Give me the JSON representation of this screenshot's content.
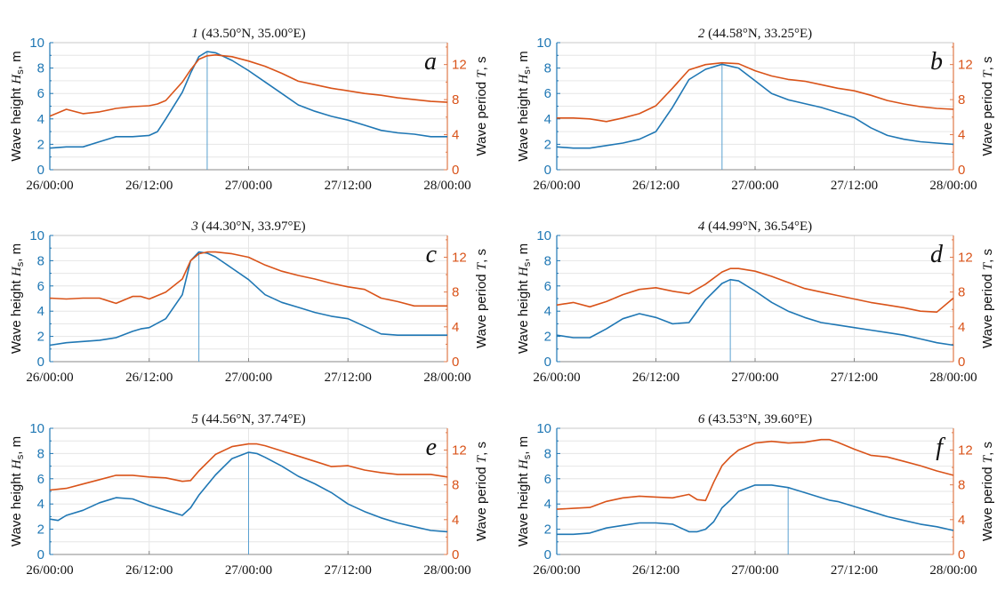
{
  "colors": {
    "wave_height": "#1f77b4",
    "wave_period": "#d95319",
    "grid": "#e6e6e6",
    "marker_line": "#5aa0d0",
    "axis_left": "#1f77b4",
    "axis_right": "#e07a4a"
  },
  "chart_data": [
    {
      "type": "line",
      "panel_letter": "a",
      "title_num": "1",
      "title_coords": "(43.50°N, 35.00°E)",
      "xlabel": "",
      "ylabel": "Wave height H_s, m",
      "ylabel_right": "Wave period T, s",
      "x_unit": "hours since 26/00:00",
      "xlim": [
        0,
        48
      ],
      "ylim": [
        0,
        10
      ],
      "ylim_right": [
        0,
        14.5
      ],
      "x_ticks": [
        0,
        12,
        24,
        36,
        48
      ],
      "x_tick_labels": [
        "26/00:00",
        "26/12:00",
        "27/00:00",
        "27/12:00",
        "28/00:00"
      ],
      "y_ticks": [
        0,
        2,
        4,
        6,
        8,
        10
      ],
      "y_ticks_right": [
        0,
        4,
        8,
        12
      ],
      "grid": true,
      "peak_marker_x": 19,
      "x": [
        0,
        2,
        4,
        6,
        8,
        10,
        12,
        13,
        14,
        16,
        17,
        18,
        19,
        20,
        22,
        24,
        26,
        28,
        30,
        32,
        34,
        36,
        38,
        40,
        42,
        44,
        46,
        48
      ],
      "series": [
        {
          "name": "Wave height Hs",
          "axis": "left",
          "values": [
            1.7,
            1.8,
            1.8,
            2.2,
            2.6,
            2.6,
            2.7,
            3.0,
            4.0,
            6.1,
            7.6,
            8.9,
            9.3,
            9.2,
            8.6,
            7.8,
            6.9,
            6.0,
            5.1,
            4.6,
            4.2,
            3.9,
            3.5,
            3.1,
            2.9,
            2.8,
            2.6,
            2.6
          ]
        },
        {
          "name": "Wave period T",
          "axis": "right",
          "values": [
            6.1,
            6.9,
            6.4,
            6.6,
            7.0,
            7.2,
            7.3,
            7.5,
            7.9,
            10.0,
            11.4,
            12.6,
            13.0,
            13.1,
            12.9,
            12.4,
            11.8,
            11.0,
            10.1,
            9.7,
            9.3,
            9.0,
            8.7,
            8.5,
            8.2,
            8.0,
            7.8,
            7.7
          ]
        }
      ]
    },
    {
      "type": "line",
      "panel_letter": "b",
      "title_num": "2",
      "title_coords": "(44.58°N, 33.25°E)",
      "xlabel": "",
      "ylabel": "Wave height H_s, m",
      "ylabel_right": "Wave period T, s",
      "x_unit": "hours since 26/00:00",
      "xlim": [
        0,
        48
      ],
      "ylim": [
        0,
        10
      ],
      "ylim_right": [
        0,
        14.5
      ],
      "x_ticks": [
        0,
        12,
        24,
        36,
        48
      ],
      "x_tick_labels": [
        "26/00:00",
        "26/12:00",
        "27/00:00",
        "27/12:00",
        "28/00:00"
      ],
      "y_ticks": [
        0,
        2,
        4,
        6,
        8,
        10
      ],
      "y_ticks_right": [
        0,
        4,
        8,
        12
      ],
      "grid": true,
      "peak_marker_x": 20,
      "x": [
        0,
        2,
        4,
        6,
        8,
        10,
        12,
        14,
        16,
        18,
        20,
        22,
        24,
        26,
        28,
        30,
        32,
        34,
        36,
        38,
        40,
        42,
        44,
        46,
        48
      ],
      "series": [
        {
          "name": "Wave height Hs",
          "axis": "left",
          "values": [
            1.8,
            1.7,
            1.7,
            1.9,
            2.1,
            2.4,
            3.0,
            4.9,
            7.1,
            7.9,
            8.3,
            8.0,
            7.0,
            6.0,
            5.5,
            5.2,
            4.9,
            4.5,
            4.1,
            3.3,
            2.7,
            2.4,
            2.2,
            2.1,
            2.0
          ]
        },
        {
          "name": "Wave period T",
          "axis": "right",
          "values": [
            5.9,
            5.9,
            5.8,
            5.5,
            5.9,
            6.4,
            7.3,
            9.3,
            11.4,
            12.0,
            12.2,
            12.1,
            11.3,
            10.7,
            10.3,
            10.1,
            9.7,
            9.3,
            9.0,
            8.5,
            7.9,
            7.5,
            7.2,
            7.0,
            6.9
          ]
        }
      ]
    },
    {
      "type": "line",
      "panel_letter": "c",
      "title_num": "3",
      "title_coords": "(44.30°N, 33.97°E)",
      "xlabel": "",
      "ylabel": "Wave height H_s, m",
      "ylabel_right": "Wave period T, s",
      "x_unit": "hours since 26/00:00",
      "xlim": [
        0,
        48
      ],
      "ylim": [
        0,
        10
      ],
      "ylim_right": [
        0,
        14.5
      ],
      "x_ticks": [
        0,
        12,
        24,
        36,
        48
      ],
      "x_tick_labels": [
        "26/00:00",
        "26/12:00",
        "27/00:00",
        "27/12:00",
        "28/00:00"
      ],
      "y_ticks": [
        0,
        2,
        4,
        6,
        8,
        10
      ],
      "y_ticks_right": [
        0,
        4,
        8,
        12
      ],
      "grid": true,
      "peak_marker_x": 18,
      "x": [
        0,
        2,
        4,
        6,
        8,
        10,
        11,
        12,
        14,
        16,
        17,
        18,
        19,
        20,
        22,
        24,
        26,
        28,
        30,
        32,
        34,
        36,
        38,
        40,
        42,
        44,
        46,
        48
      ],
      "series": [
        {
          "name": "Wave height Hs",
          "axis": "left",
          "values": [
            1.3,
            1.5,
            1.6,
            1.7,
            1.9,
            2.4,
            2.6,
            2.7,
            3.4,
            5.3,
            8.0,
            8.7,
            8.6,
            8.3,
            7.4,
            6.5,
            5.3,
            4.7,
            4.3,
            3.9,
            3.6,
            3.4,
            2.8,
            2.2,
            2.1,
            2.1,
            2.1,
            2.1
          ]
        },
        {
          "name": "Wave period T",
          "axis": "right",
          "values": [
            7.3,
            7.2,
            7.3,
            7.3,
            6.7,
            7.5,
            7.5,
            7.2,
            8.0,
            9.5,
            11.6,
            12.4,
            12.6,
            12.6,
            12.4,
            12.0,
            11.1,
            10.4,
            9.9,
            9.5,
            9.0,
            8.6,
            8.3,
            7.3,
            6.9,
            6.4,
            6.4,
            6.4
          ]
        }
      ]
    },
    {
      "type": "line",
      "panel_letter": "d",
      "title_num": "4",
      "title_coords": "(44.99°N, 36.54°E)",
      "xlabel": "",
      "ylabel": "Wave height H_s, m",
      "ylabel_right": "Wave period T, s",
      "x_unit": "hours since 26/00:00",
      "xlim": [
        0,
        48
      ],
      "ylim": [
        0,
        10
      ],
      "ylim_right": [
        0,
        14.5
      ],
      "x_ticks": [
        0,
        12,
        24,
        36,
        48
      ],
      "x_tick_labels": [
        "26/00:00",
        "26/12:00",
        "27/00:00",
        "27/12:00",
        "28/00:00"
      ],
      "y_ticks": [
        0,
        2,
        4,
        6,
        8,
        10
      ],
      "y_ticks_right": [
        0,
        4,
        8,
        12
      ],
      "grid": true,
      "peak_marker_x": 21,
      "x": [
        0,
        2,
        4,
        6,
        8,
        10,
        12,
        14,
        16,
        18,
        20,
        21,
        22,
        24,
        26,
        28,
        30,
        32,
        34,
        36,
        38,
        40,
        42,
        44,
        46,
        48
      ],
      "series": [
        {
          "name": "Wave height Hs",
          "axis": "left",
          "values": [
            2.1,
            1.9,
            1.9,
            2.6,
            3.4,
            3.8,
            3.5,
            3.0,
            3.1,
            4.9,
            6.2,
            6.5,
            6.4,
            5.6,
            4.7,
            4.0,
            3.5,
            3.1,
            2.9,
            2.7,
            2.5,
            2.3,
            2.1,
            1.8,
            1.5,
            1.3
          ]
        },
        {
          "name": "Wave period T",
          "axis": "right",
          "values": [
            6.5,
            6.8,
            6.3,
            6.9,
            7.7,
            8.3,
            8.5,
            8.1,
            7.8,
            8.9,
            10.3,
            10.7,
            10.7,
            10.4,
            9.8,
            9.1,
            8.4,
            8.0,
            7.6,
            7.2,
            6.8,
            6.5,
            6.2,
            5.8,
            5.7,
            7.3
          ]
        }
      ]
    },
    {
      "type": "line",
      "panel_letter": "e",
      "title_num": "5",
      "title_coords": "(44.56°N, 37.74°E)",
      "xlabel": "",
      "ylabel": "Wave height H_s, m",
      "ylabel_right": "Wave period T, s",
      "x_unit": "hours since 26/00:00",
      "xlim": [
        0,
        48
      ],
      "ylim": [
        0,
        10
      ],
      "ylim_right": [
        0,
        14.5
      ],
      "x_ticks": [
        0,
        12,
        24,
        36,
        48
      ],
      "x_tick_labels": [
        "26/00:00",
        "26/12:00",
        "27/00:00",
        "27/12:00",
        "28/00:00"
      ],
      "y_ticks": [
        0,
        2,
        4,
        6,
        8,
        10
      ],
      "y_ticks_right": [
        0,
        4,
        8,
        12
      ],
      "grid": true,
      "peak_marker_x": 24,
      "x": [
        0,
        1,
        2,
        4,
        6,
        8,
        10,
        12,
        14,
        16,
        17,
        18,
        20,
        22,
        24,
        25,
        26,
        28,
        30,
        32,
        34,
        36,
        38,
        40,
        42,
        44,
        46,
        48
      ],
      "series": [
        {
          "name": "Wave height Hs",
          "axis": "left",
          "values": [
            2.8,
            2.7,
            3.1,
            3.5,
            4.1,
            4.5,
            4.4,
            3.9,
            3.5,
            3.1,
            3.7,
            4.7,
            6.3,
            7.6,
            8.1,
            8.0,
            7.7,
            7.0,
            6.2,
            5.6,
            4.9,
            4.0,
            3.4,
            2.9,
            2.5,
            2.2,
            1.9,
            1.8
          ]
        },
        {
          "name": "Wave period T",
          "axis": "right",
          "values": [
            7.4,
            7.5,
            7.6,
            8.1,
            8.6,
            9.1,
            9.1,
            8.9,
            8.8,
            8.4,
            8.5,
            9.6,
            11.5,
            12.4,
            12.7,
            12.7,
            12.5,
            11.9,
            11.3,
            10.7,
            10.1,
            10.2,
            9.7,
            9.4,
            9.2,
            9.2,
            9.2,
            8.9
          ]
        }
      ]
    },
    {
      "type": "line",
      "panel_letter": "f",
      "title_num": "6",
      "title_coords": "(43.53°N, 39.60°E)",
      "xlabel": "",
      "ylabel": "Wave height H_s, m",
      "ylabel_right": "Wave period T, s",
      "x_unit": "hours since 26/00:00",
      "xlim": [
        0,
        48
      ],
      "ylim": [
        0,
        10
      ],
      "ylim_right": [
        0,
        14.5
      ],
      "x_ticks": [
        0,
        12,
        24,
        36,
        48
      ],
      "x_tick_labels": [
        "26/00:00",
        "26/12:00",
        "27/00:00",
        "27/12:00",
        "28/00:00"
      ],
      "y_ticks": [
        0,
        2,
        4,
        6,
        8,
        10
      ],
      "y_ticks_right": [
        0,
        4,
        8,
        12
      ],
      "grid": true,
      "peak_marker_x": 28,
      "x": [
        0,
        2,
        4,
        6,
        8,
        10,
        12,
        14,
        16,
        17,
        18,
        19,
        20,
        21,
        22,
        24,
        26,
        28,
        30,
        32,
        33,
        34,
        36,
        38,
        40,
        42,
        44,
        46,
        48
      ],
      "series": [
        {
          "name": "Wave height Hs",
          "axis": "left",
          "values": [
            1.6,
            1.6,
            1.7,
            2.1,
            2.3,
            2.5,
            2.5,
            2.4,
            1.8,
            1.8,
            2.0,
            2.6,
            3.7,
            4.3,
            5.0,
            5.5,
            5.5,
            5.3,
            4.9,
            4.5,
            4.3,
            4.2,
            3.8,
            3.4,
            3.0,
            2.7,
            2.4,
            2.2,
            1.9
          ]
        },
        {
          "name": "Wave period T",
          "axis": "right",
          "values": [
            5.2,
            5.3,
            5.4,
            6.1,
            6.5,
            6.7,
            6.6,
            6.5,
            6.9,
            6.3,
            6.2,
            8.3,
            10.2,
            11.2,
            12.0,
            12.8,
            13.0,
            12.8,
            12.9,
            13.2,
            13.2,
            12.9,
            12.1,
            11.4,
            11.2,
            10.7,
            10.2,
            9.6,
            9.1
          ]
        }
      ]
    }
  ]
}
